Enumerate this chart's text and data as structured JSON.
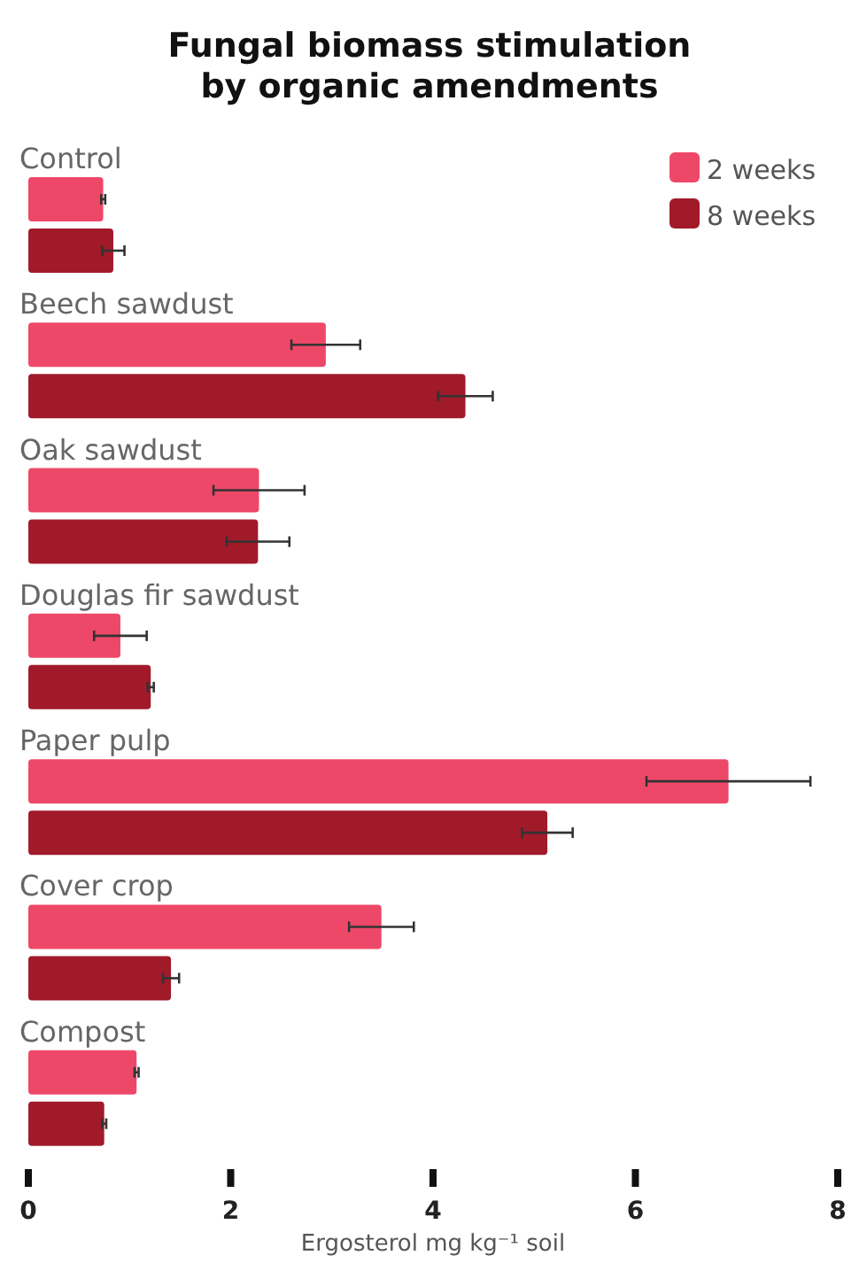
{
  "chart_data": {
    "type": "bar",
    "orientation": "horizontal",
    "title": "Fungal biomass stimulation by organic amendments",
    "xlabel": "Ergosterol mg kg⁻¹ soil",
    "categories": [
      "Control",
      "Beech sawdust",
      "Oak sawdust",
      "Douglas fir sawdust",
      "Paper pulp",
      "Cover crop",
      "Compost"
    ],
    "series": [
      {
        "name": "2 weeks",
        "color": "#ee4868",
        "values": [
          0.74,
          2.94,
          2.28,
          0.91,
          6.92,
          3.49,
          1.07
        ],
        "errors": [
          0.02,
          0.34,
          0.45,
          0.26,
          0.81,
          0.32,
          0.02
        ]
      },
      {
        "name": "8 weeks",
        "color": "#a11a2a",
        "values": [
          0.84,
          4.32,
          2.27,
          1.21,
          5.13,
          1.41,
          0.75
        ],
        "errors": [
          0.11,
          0.27,
          0.31,
          0.03,
          0.25,
          0.08,
          0.02
        ]
      }
    ],
    "xlim": [
      0,
      8
    ],
    "xticks": [
      0,
      2,
      4,
      6,
      8
    ],
    "legend": "top right",
    "grid": false
  }
}
